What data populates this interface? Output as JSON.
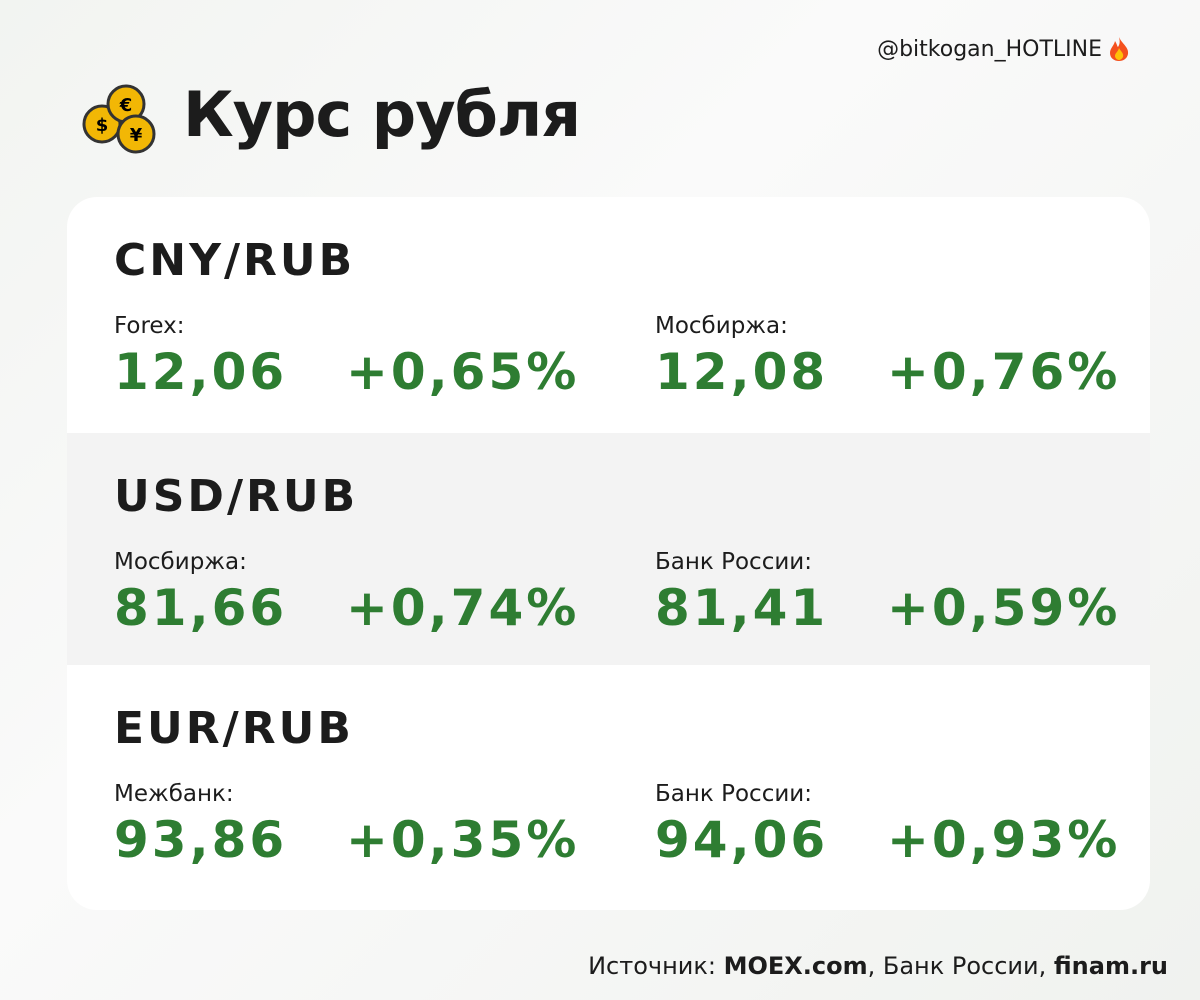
{
  "header": {
    "handle": "@bitkogan_HOTLINE",
    "title": "Курс рубля"
  },
  "sections": [
    {
      "pair": "CNY/RUB",
      "quotes": [
        {
          "label": "Forex:",
          "value": "12,06",
          "change": "+0,65%"
        },
        {
          "label": "Мосбиржа:",
          "value": "12,08",
          "change": "+0,76%"
        }
      ]
    },
    {
      "pair": "USD/RUB",
      "quotes": [
        {
          "label": "Мосбиржа:",
          "value": "81,66",
          "change": "+0,74%"
        },
        {
          "label": "Банк России:",
          "value": "81,41",
          "change": "+0,59%"
        }
      ]
    },
    {
      "pair": "EUR/RUB",
      "quotes": [
        {
          "label": "Межбанк:",
          "value": "93,86",
          "change": "+0,35%"
        },
        {
          "label": "Банк России:",
          "value": "94,06",
          "change": "+0,93%"
        }
      ]
    }
  ],
  "footer": {
    "parts": [
      "Источник: ",
      "MOEX.com",
      ", Банк России, ",
      "finam.ru"
    ]
  }
}
